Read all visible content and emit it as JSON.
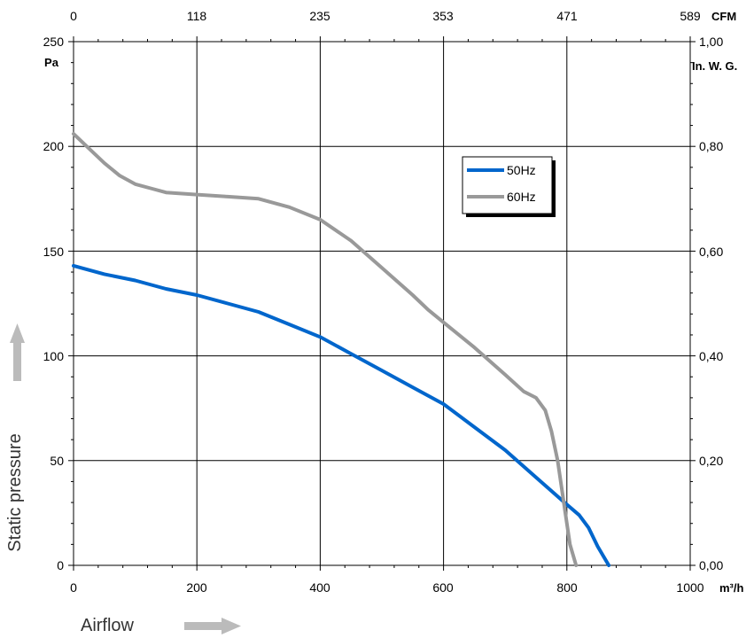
{
  "chart_data": {
    "type": "line",
    "x_label": "Airflow",
    "y_label": "Static pressure",
    "x_unit": "m³/h",
    "y_unit": "Pa",
    "x2_unit": "CFM",
    "y2_unit": "In. W. G.",
    "xlim": [
      0,
      1000
    ],
    "ylim": [
      0,
      250
    ],
    "x_ticks": [
      "0",
      "200",
      "400",
      "600",
      "800",
      "1000"
    ],
    "y_ticks": [
      "0",
      "50",
      "100",
      "150",
      "200",
      "250"
    ],
    "x2_ticks": [
      "0",
      "118",
      "235",
      "353",
      "471",
      "589"
    ],
    "y2_ticks": [
      "0,00",
      "0,20",
      "0,40",
      "0,60",
      "0,80",
      "1,00"
    ],
    "grid": true,
    "legend_position": "top-right",
    "series": [
      {
        "name": "50Hz",
        "color": "#0066cc",
        "points": [
          [
            0,
            143
          ],
          [
            50,
            139
          ],
          [
            100,
            136
          ],
          [
            150,
            132
          ],
          [
            200,
            129
          ],
          [
            250,
            125
          ],
          [
            300,
            121
          ],
          [
            350,
            115
          ],
          [
            400,
            109
          ],
          [
            450,
            101
          ],
          [
            500,
            93
          ],
          [
            550,
            85
          ],
          [
            600,
            77
          ],
          [
            650,
            66
          ],
          [
            700,
            55
          ],
          [
            750,
            42
          ],
          [
            800,
            29
          ],
          [
            820,
            24
          ],
          [
            835,
            18
          ],
          [
            850,
            9
          ],
          [
            868,
            0
          ]
        ]
      },
      {
        "name": "60Hz",
        "color": "#999999",
        "points": [
          [
            0,
            206
          ],
          [
            25,
            199
          ],
          [
            50,
            192
          ],
          [
            75,
            186
          ],
          [
            100,
            182
          ],
          [
            125,
            180
          ],
          [
            150,
            178
          ],
          [
            200,
            177
          ],
          [
            250,
            176
          ],
          [
            300,
            175
          ],
          [
            350,
            171
          ],
          [
            400,
            165
          ],
          [
            450,
            155
          ],
          [
            500,
            142
          ],
          [
            550,
            129
          ],
          [
            575,
            122
          ],
          [
            600,
            116
          ],
          [
            650,
            104
          ],
          [
            700,
            91
          ],
          [
            730,
            83
          ],
          [
            750,
            80
          ],
          [
            765,
            74
          ],
          [
            775,
            64
          ],
          [
            785,
            50
          ],
          [
            795,
            30
          ],
          [
            805,
            10
          ],
          [
            815,
            0
          ]
        ]
      }
    ]
  }
}
